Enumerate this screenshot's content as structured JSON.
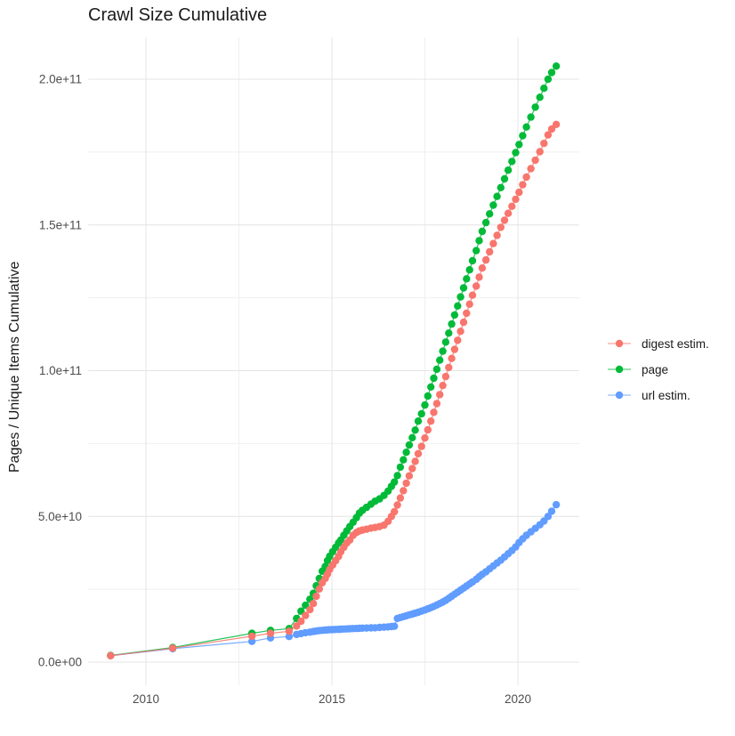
{
  "title": "Crawl Size Cumulative",
  "y_axis": {
    "label": "Pages / Unique Items Cumulative",
    "tick_labels": [
      "0.0e+00",
      "5.0e+10",
      "1.0e+11",
      "1.5e+11",
      "2.0e+11"
    ],
    "tick_values_e9": [
      0,
      50,
      100,
      150,
      200
    ],
    "minor_values_e9": [
      25,
      75,
      125,
      175
    ]
  },
  "x_axis": {
    "tick_labels": [
      "2010",
      "2015",
      "2020"
    ],
    "tick_years": [
      2010,
      2015,
      2020
    ],
    "minor_years": [
      2012.5,
      2017.5
    ]
  },
  "colors": {
    "digest": "#F8766D",
    "page": "#00BA38",
    "url": "#619CFF",
    "grid_major": "#e4e4e4",
    "grid_minor": "#efefef",
    "tick_text": "#4d4d4d",
    "title_text": "#1a1a1a"
  },
  "chart_data": {
    "type": "line",
    "title": "Crawl Size Cumulative",
    "xlabel": "",
    "ylabel": "Pages / Unique Items Cumulative",
    "y_unit": "items; values_e9 are billions (1e9)",
    "x_unit": "calendar year of crawl",
    "xlim": [
      2008.45,
      2021.65
    ],
    "ylim_e9": [
      0,
      205
    ],
    "grid": true,
    "legend_position": "right",
    "marker": "point",
    "x": [
      2009.05,
      2010.72,
      2012.85,
      2013.35,
      2013.85,
      2014.05,
      2014.17,
      2014.29,
      2014.41,
      2014.5,
      2014.58,
      2014.66,
      2014.74,
      2014.82,
      2014.88,
      2014.94,
      2015.02,
      2015.1,
      2015.18,
      2015.24,
      2015.32,
      2015.4,
      2015.48,
      2015.57,
      2015.66,
      2015.74,
      2015.82,
      2015.93,
      2016.05,
      2016.16,
      2016.28,
      2016.4,
      2016.51,
      2016.6,
      2016.68,
      2016.76,
      2016.84,
      2016.92,
      2017.0,
      2017.08,
      2017.16,
      2017.24,
      2017.32,
      2017.41,
      2017.5,
      2017.58,
      2017.66,
      2017.74,
      2017.82,
      2017.9,
      2017.98,
      2018.06,
      2018.14,
      2018.22,
      2018.3,
      2018.38,
      2018.46,
      2018.54,
      2018.62,
      2018.7,
      2018.78,
      2018.88,
      2018.96,
      2019.04,
      2019.14,
      2019.24,
      2019.34,
      2019.44,
      2019.54,
      2019.64,
      2019.74,
      2019.84,
      2019.94,
      2020.03,
      2020.13,
      2020.23,
      2020.35,
      2020.47,
      2020.59,
      2020.7,
      2020.81,
      2020.91,
      2021.03
    ],
    "series": [
      {
        "name": "digest estim.",
        "color": "#F8766D",
        "values_e9": [
          2.2,
          4.8,
          8.9,
          9.9,
          10.6,
          12.4,
          14.0,
          16.0,
          18.0,
          20.1,
          22.6,
          25.1,
          27.2,
          28.7,
          30.2,
          31.8,
          33.3,
          34.8,
          36.3,
          37.9,
          39.4,
          40.9,
          41.9,
          43.5,
          44.5,
          45.0,
          45.3,
          45.6,
          46.0,
          46.2,
          46.5,
          47.0,
          48.3,
          50.0,
          51.6,
          53.9,
          56.3,
          58.8,
          61.4,
          63.9,
          66.4,
          68.9,
          71.5,
          74.0,
          76.9,
          79.7,
          82.7,
          85.7,
          88.7,
          91.8,
          94.9,
          98.0,
          101.1,
          104.2,
          107.3,
          110.4,
          113.5,
          116.6,
          119.7,
          122.8,
          125.9,
          129.0,
          132.1,
          135.2,
          138.0,
          140.8,
          143.6,
          146.4,
          149.2,
          151.6,
          154.0,
          156.4,
          158.8,
          161.2,
          163.8,
          166.4,
          169.3,
          172.2,
          175.1,
          178.0,
          180.9,
          182.9,
          184.5
        ]
      },
      {
        "name": "page",
        "color": "#00BA38",
        "values_e9": [
          2.3,
          5.0,
          9.9,
          10.9,
          11.5,
          15.0,
          17.5,
          19.5,
          21.6,
          23.6,
          26.2,
          28.7,
          31.2,
          32.8,
          34.8,
          36.3,
          37.9,
          39.4,
          40.9,
          41.9,
          43.5,
          45.0,
          46.5,
          48.0,
          49.6,
          51.1,
          52.1,
          53.1,
          54.2,
          55.2,
          56.0,
          57.2,
          58.7,
          60.3,
          61.8,
          64.0,
          66.9,
          69.4,
          72.0,
          74.5,
          77.0,
          79.6,
          82.7,
          85.2,
          88.2,
          91.3,
          94.4,
          97.4,
          100.5,
          103.6,
          106.7,
          109.8,
          112.9,
          116.0,
          119.1,
          122.2,
          125.3,
          128.4,
          131.5,
          134.6,
          137.7,
          141.2,
          144.6,
          147.8,
          150.8,
          153.8,
          156.8,
          159.8,
          162.8,
          165.8,
          168.8,
          171.8,
          174.8,
          177.6,
          180.6,
          183.6,
          187.0,
          190.4,
          193.8,
          196.9,
          200.0,
          202.3,
          204.5
        ]
      },
      {
        "name": "url estim.",
        "color": "#619CFF",
        "values_e9": [
          2.2,
          4.6,
          7.1,
          8.3,
          8.8,
          9.5,
          9.8,
          10.1,
          10.3,
          10.5,
          10.65,
          10.8,
          10.9,
          11.0,
          11.05,
          11.1,
          11.15,
          11.2,
          11.25,
          11.3,
          11.35,
          11.4,
          11.45,
          11.5,
          11.55,
          11.6,
          11.65,
          11.7,
          11.75,
          11.8,
          11.9,
          12.0,
          12.1,
          12.2,
          12.3,
          15.0,
          15.3,
          15.6,
          15.9,
          16.2,
          16.5,
          16.8,
          17.1,
          17.5,
          17.9,
          18.3,
          18.7,
          19.1,
          19.6,
          20.1,
          20.6,
          21.2,
          21.9,
          22.6,
          23.3,
          24.0,
          24.7,
          25.4,
          26.1,
          26.8,
          27.5,
          28.4,
          29.3,
          30.1,
          31.0,
          32.0,
          33.0,
          34.0,
          35.0,
          36.1,
          37.2,
          38.3,
          39.5,
          41.0,
          42.3,
          43.5,
          44.7,
          45.9,
          47.1,
          48.4,
          50.0,
          51.8,
          54.0
        ]
      }
    ],
    "draw_order": [
      "page",
      "url estim.",
      "digest estim."
    ]
  }
}
